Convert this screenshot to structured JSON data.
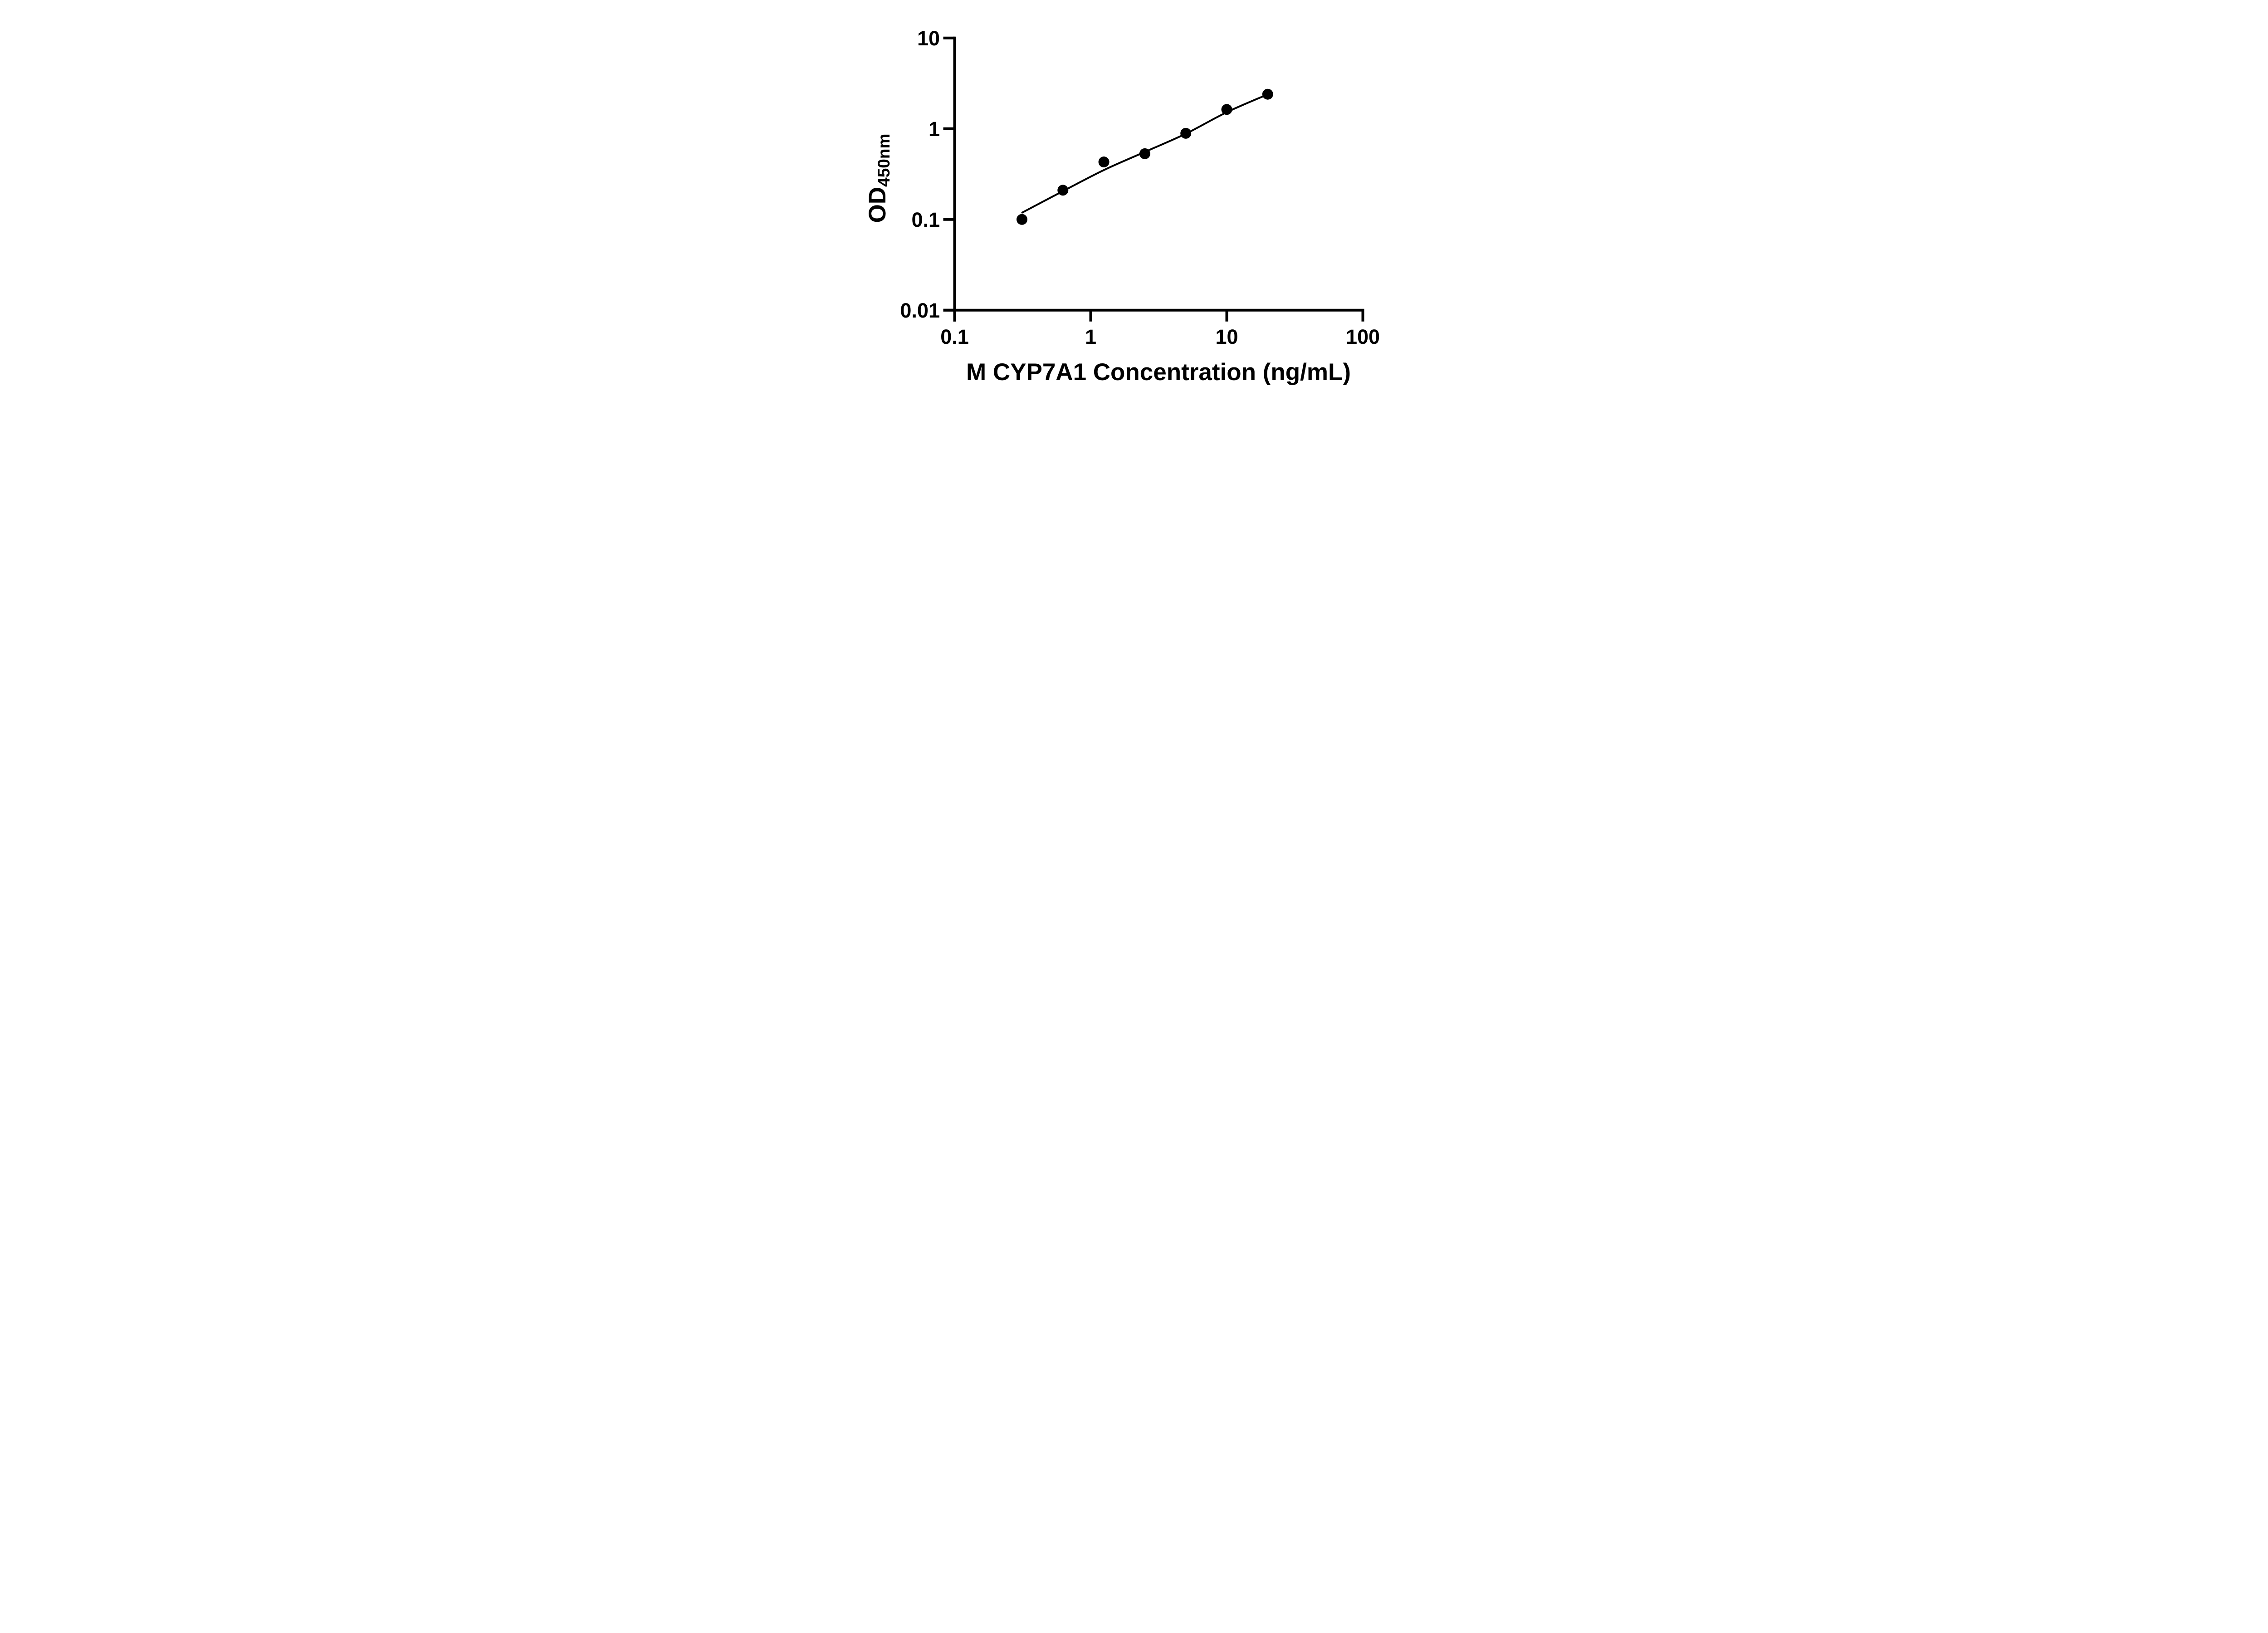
{
  "figure": {
    "background_color": "#ffffff",
    "ink_color": "#000000"
  },
  "chart_data": {
    "type": "scatter",
    "title": "",
    "xlabel": "M CYP7A1 Concentration (ng/mL)",
    "ylabel": "OD",
    "ylabel_subscript": "450nm",
    "x_scale": "log",
    "y_scale": "log",
    "xlim": [
      0.1,
      100
    ],
    "ylim": [
      0.01,
      10
    ],
    "x_ticks": [
      0.1,
      1,
      10,
      100
    ],
    "x_tick_labels": [
      "0.1",
      "1",
      "10",
      "100"
    ],
    "y_ticks": [
      10,
      1,
      0.1,
      0.01
    ],
    "y_tick_labels": [
      "10",
      "1",
      "0.1",
      "0.01"
    ],
    "grid": false,
    "legend": "none",
    "series": [
      {
        "name": "standard-curve-points",
        "marker": "filled-circle",
        "marker_color": "#000000",
        "x": [
          0.3125,
          0.625,
          1.25,
          2.5,
          5,
          10,
          20
        ],
        "y": [
          0.1,
          0.21,
          0.43,
          0.53,
          0.89,
          1.63,
          2.4
        ]
      }
    ],
    "fit_line": {
      "name": "standard-curve-fit",
      "color": "#000000",
      "points": [
        [
          0.314,
          0.119
        ],
        [
          0.625,
          0.205
        ],
        [
          1.25,
          0.35
        ],
        [
          2.5,
          0.555
        ],
        [
          5,
          0.88
        ],
        [
          10,
          1.52
        ],
        [
          20,
          2.39
        ]
      ]
    }
  }
}
